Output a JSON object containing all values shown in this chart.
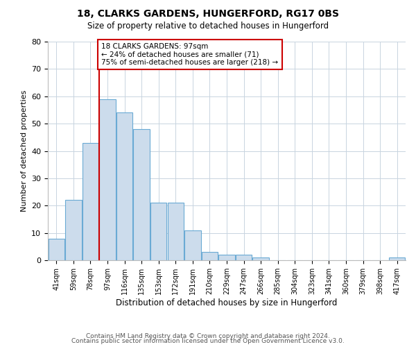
{
  "title": "18, CLARKS GARDENS, HUNGERFORD, RG17 0BS",
  "subtitle": "Size of property relative to detached houses in Hungerford",
  "xlabel": "Distribution of detached houses by size in Hungerford",
  "ylabel": "Number of detached properties",
  "bin_labels": [
    "41sqm",
    "59sqm",
    "78sqm",
    "97sqm",
    "116sqm",
    "135sqm",
    "153sqm",
    "172sqm",
    "191sqm",
    "210sqm",
    "229sqm",
    "247sqm",
    "266sqm",
    "285sqm",
    "304sqm",
    "323sqm",
    "341sqm",
    "360sqm",
    "379sqm",
    "398sqm",
    "417sqm"
  ],
  "bar_heights": [
    8,
    22,
    43,
    59,
    54,
    48,
    21,
    21,
    11,
    3,
    2,
    2,
    1,
    0,
    0,
    0,
    0,
    0,
    0,
    0,
    1
  ],
  "bar_color": "#ccdcec",
  "bar_edge_color": "#6aaad4",
  "vline_x_index": 3,
  "vline_color": "#cc0000",
  "ylim": [
    0,
    80
  ],
  "yticks": [
    0,
    10,
    20,
    30,
    40,
    50,
    60,
    70,
    80
  ],
  "annotation_text": "18 CLARKS GARDENS: 97sqm\n← 24% of detached houses are smaller (71)\n75% of semi-detached houses are larger (218) →",
  "annotation_box_color": "#ffffff",
  "annotation_box_edge": "#cc0000",
  "footer_line1": "Contains HM Land Registry data © Crown copyright and database right 2024.",
  "footer_line2": "Contains public sector information licensed under the Open Government Licence v3.0.",
  "background_color": "#ffffff",
  "grid_color": "#c8d4e0"
}
